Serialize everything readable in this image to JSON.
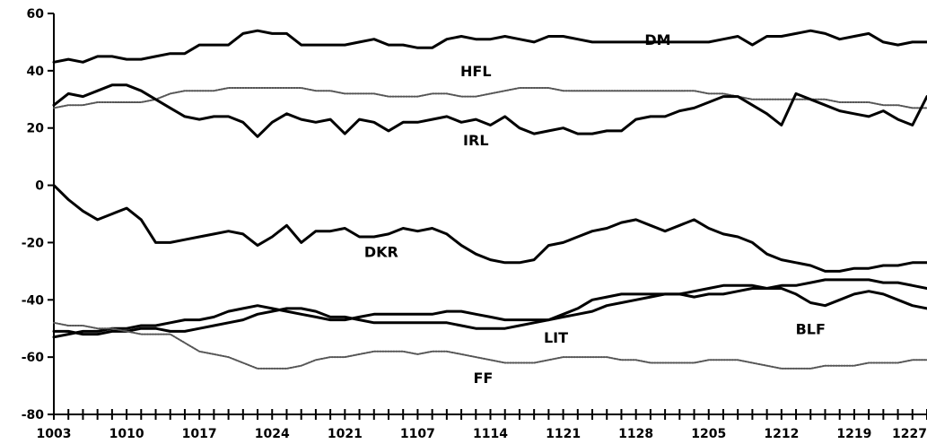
{
  "chart_data": {
    "type": "line",
    "title": "",
    "xlabel": "",
    "ylabel": "",
    "ylim": [
      -80,
      60
    ],
    "y_ticks": [
      60,
      40,
      20,
      0,
      -20,
      -40,
      -60,
      -80
    ],
    "y_tick_labels": [
      "60",
      "40",
      "20",
      "0",
      "-20",
      "-40",
      "-60",
      "-80"
    ],
    "x_range": [
      0,
      120
    ],
    "x_tick_count": 61,
    "x_labels": [
      {
        "label": "1003",
        "x": 0
      },
      {
        "label": "1010",
        "x": 10
      },
      {
        "label": "1017",
        "x": 20
      },
      {
        "label": "1024",
        "x": 30
      },
      {
        "label": "1021",
        "x": 40
      },
      {
        "label": "1107",
        "x": 50
      },
      {
        "label": "1114",
        "x": 60
      },
      {
        "label": "1121",
        "x": 70
      },
      {
        "label": "1128",
        "x": 80
      },
      {
        "label": "1205",
        "x": 90
      },
      {
        "label": "1212",
        "x": 100
      },
      {
        "label": "1219",
        "x": 110
      },
      {
        "label": "1227",
        "x": 120
      }
    ],
    "series": [
      {
        "name": "DM",
        "style": "solid",
        "color": "#000000",
        "x": [
          0,
          2,
          4,
          6,
          8,
          10,
          12,
          14,
          16,
          18,
          20,
          22,
          24,
          26,
          28,
          30,
          32,
          34,
          36,
          38,
          40,
          42,
          44,
          46,
          48,
          50,
          52,
          54,
          56,
          58,
          60,
          62,
          64,
          66,
          68,
          70,
          72,
          74,
          76,
          78,
          80,
          82,
          84,
          86,
          88,
          90,
          92,
          94,
          96,
          98,
          100,
          102,
          104,
          106,
          108,
          110,
          112,
          114,
          116,
          118,
          120
        ],
        "values": [
          43,
          44,
          43,
          45,
          45,
          44,
          44,
          45,
          46,
          46,
          49,
          49,
          49,
          53,
          54,
          53,
          53,
          49,
          49,
          49,
          49,
          50,
          51,
          49,
          49,
          48,
          48,
          51,
          52,
          51,
          51,
          52,
          51,
          50,
          52,
          52,
          51,
          50,
          50,
          50,
          50,
          50,
          50,
          50,
          50,
          50,
          51,
          52,
          49,
          52,
          52,
          53,
          54,
          53,
          51,
          52,
          53,
          50,
          49,
          50,
          50
        ]
      },
      {
        "name": "HFL",
        "style": "dotted",
        "color": "#555555",
        "x": [
          0,
          2,
          4,
          6,
          8,
          10,
          12,
          14,
          16,
          18,
          20,
          22,
          24,
          26,
          28,
          30,
          32,
          34,
          36,
          38,
          40,
          42,
          44,
          46,
          48,
          50,
          52,
          54,
          56,
          58,
          60,
          62,
          64,
          66,
          68,
          70,
          72,
          74,
          76,
          78,
          80,
          82,
          84,
          86,
          88,
          90,
          92,
          94,
          96,
          98,
          100,
          102,
          104,
          106,
          108,
          110,
          112,
          114,
          116,
          118,
          120
        ],
        "values": [
          27,
          28,
          28,
          29,
          29,
          29,
          29,
          30,
          32,
          33,
          33,
          33,
          34,
          34,
          34,
          34,
          34,
          34,
          33,
          33,
          32,
          32,
          32,
          31,
          31,
          31,
          32,
          32,
          31,
          31,
          32,
          33,
          34,
          34,
          34,
          33,
          33,
          33,
          33,
          33,
          33,
          33,
          33,
          33,
          33,
          32,
          32,
          31,
          30,
          30,
          30,
          30,
          30,
          30,
          29,
          29,
          29,
          28,
          28,
          27,
          27
        ]
      },
      {
        "name": "IRL",
        "style": "solid",
        "color": "#000000",
        "x": [
          0,
          2,
          4,
          6,
          8,
          10,
          12,
          14,
          16,
          18,
          20,
          22,
          24,
          26,
          28,
          30,
          32,
          34,
          36,
          38,
          40,
          42,
          44,
          46,
          48,
          50,
          52,
          54,
          56,
          58,
          60,
          62,
          64,
          66,
          68,
          70,
          72,
          74,
          76,
          78,
          80,
          82,
          84,
          86,
          88,
          90,
          92,
          94,
          96,
          98,
          100,
          102,
          104,
          106,
          108,
          110,
          112,
          114,
          116,
          118,
          120
        ],
        "values": [
          28,
          32,
          31,
          33,
          35,
          35,
          33,
          30,
          27,
          24,
          23,
          24,
          24,
          22,
          17,
          22,
          25,
          23,
          22,
          23,
          18,
          23,
          22,
          19,
          22,
          22,
          23,
          24,
          22,
          23,
          21,
          24,
          20,
          18,
          19,
          20,
          18,
          18,
          19,
          19,
          23,
          24,
          24,
          26,
          27,
          29,
          31,
          31,
          28,
          25,
          21,
          32,
          30,
          28,
          26,
          25,
          24,
          26,
          23,
          21,
          31
        ]
      },
      {
        "name": "DKR",
        "style": "solid",
        "color": "#000000",
        "x": [
          0,
          2,
          4,
          6,
          8,
          10,
          12,
          14,
          16,
          18,
          20,
          22,
          24,
          26,
          28,
          30,
          32,
          34,
          36,
          38,
          40,
          42,
          44,
          46,
          48,
          50,
          52,
          54,
          56,
          58,
          60,
          62,
          64,
          66,
          68,
          70,
          72,
          74,
          76,
          78,
          80,
          82,
          84,
          86,
          88,
          90,
          92,
          94,
          96,
          98,
          100,
          102,
          104,
          106,
          108,
          110,
          112,
          114,
          116,
          118,
          120
        ],
        "values": [
          0,
          -5,
          -9,
          -12,
          -10,
          -8,
          -12,
          -20,
          -20,
          -19,
          -18,
          -17,
          -16,
          -17,
          -21,
          -18,
          -14,
          -20,
          -16,
          -16,
          -15,
          -18,
          -18,
          -17,
          -15,
          -16,
          -15,
          -17,
          -21,
          -24,
          -26,
          -27,
          -27,
          -26,
          -21,
          -20,
          -18,
          -16,
          -15,
          -13,
          -12,
          -14,
          -16,
          -14,
          -12,
          -15,
          -17,
          -18,
          -20,
          -24,
          -26,
          -27,
          -28,
          -30,
          -30,
          -29,
          -29,
          -28,
          -28,
          -27,
          -27
        ]
      },
      {
        "name": "LIT",
        "style": "solid",
        "color": "#000000",
        "x": [
          0,
          2,
          4,
          6,
          8,
          10,
          12,
          14,
          16,
          18,
          20,
          22,
          24,
          26,
          28,
          30,
          32,
          34,
          36,
          38,
          40,
          42,
          44,
          46,
          48,
          50,
          52,
          54,
          56,
          58,
          60,
          62,
          64,
          66,
          68,
          70,
          72,
          74,
          76,
          78,
          80,
          82,
          84,
          86,
          88,
          90,
          92,
          94,
          96,
          98,
          100,
          102,
          104,
          106,
          108,
          110,
          112,
          114,
          116,
          118,
          120
        ],
        "values": [
          -51,
          -51,
          -52,
          -52,
          -51,
          -51,
          -50,
          -50,
          -51,
          -51,
          -50,
          -49,
          -48,
          -47,
          -45,
          -44,
          -43,
          -43,
          -44,
          -46,
          -46,
          -47,
          -48,
          -48,
          -48,
          -48,
          -48,
          -48,
          -49,
          -50,
          -50,
          -50,
          -49,
          -48,
          -47,
          -46,
          -45,
          -44,
          -42,
          -41,
          -40,
          -39,
          -38,
          -38,
          -39,
          -38,
          -38,
          -37,
          -36,
          -36,
          -35,
          -35,
          -34,
          -33,
          -33,
          -33,
          -33,
          -34,
          -34,
          -35,
          -36
        ]
      },
      {
        "name": "BLF",
        "style": "solid",
        "color": "#000000",
        "x": [
          0,
          2,
          4,
          6,
          8,
          10,
          12,
          14,
          16,
          18,
          20,
          22,
          24,
          26,
          28,
          30,
          32,
          34,
          36,
          38,
          40,
          42,
          44,
          46,
          48,
          50,
          52,
          54,
          56,
          58,
          60,
          62,
          64,
          66,
          68,
          70,
          72,
          74,
          76,
          78,
          80,
          82,
          84,
          86,
          88,
          90,
          92,
          94,
          96,
          98,
          100,
          102,
          104,
          106,
          108,
          110,
          112,
          114,
          116,
          118,
          120
        ],
        "values": [
          -53,
          -52,
          -51,
          -51,
          -50,
          -50,
          -49,
          -49,
          -48,
          -47,
          -47,
          -46,
          -44,
          -43,
          -42,
          -43,
          -44,
          -45,
          -46,
          -47,
          -47,
          -46,
          -45,
          -45,
          -45,
          -45,
          -45,
          -44,
          -44,
          -45,
          -46,
          -47,
          -47,
          -47,
          -47,
          -45,
          -43,
          -40,
          -39,
          -38,
          -38,
          -38,
          -38,
          -38,
          -37,
          -36,
          -35,
          -35,
          -35,
          -36,
          -36,
          -38,
          -41,
          -42,
          -40,
          -38,
          -37,
          -38,
          -40,
          -42,
          -43
        ]
      },
      {
        "name": "FF",
        "style": "dotted",
        "color": "#555555",
        "x": [
          0,
          2,
          4,
          6,
          8,
          10,
          12,
          14,
          16,
          18,
          20,
          22,
          24,
          26,
          28,
          30,
          32,
          34,
          36,
          38,
          40,
          42,
          44,
          46,
          48,
          50,
          52,
          54,
          56,
          58,
          60,
          62,
          64,
          66,
          68,
          70,
          72,
          74,
          76,
          78,
          80,
          82,
          84,
          86,
          88,
          90,
          92,
          94,
          96,
          98,
          100,
          102,
          104,
          106,
          108,
          110,
          112,
          114,
          116,
          118,
          120
        ],
        "values": [
          -48,
          -49,
          -49,
          -50,
          -50,
          -51,
          -52,
          -52,
          -52,
          -55,
          -58,
          -59,
          -60,
          -62,
          -64,
          -64,
          -64,
          -63,
          -61,
          -60,
          -60,
          -59,
          -58,
          -58,
          -58,
          -59,
          -58,
          -58,
          -59,
          -60,
          -61,
          -62,
          -62,
          -62,
          -61,
          -60,
          -60,
          -60,
          -60,
          -61,
          -61,
          -62,
          -62,
          -62,
          -62,
          -61,
          -61,
          -61,
          -62,
          -63,
          -64,
          -64,
          -64,
          -63,
          -63,
          -63,
          -62,
          -62,
          -62,
          -61,
          -61
        ]
      }
    ],
    "annotations": [
      {
        "text": "DM",
        "x": 83,
        "y": 49
      },
      {
        "text": "HFL",
        "x": 58,
        "y": 38
      },
      {
        "text": "IRL",
        "x": 58,
        "y": 14
      },
      {
        "text": "DKR",
        "x": 45,
        "y": -25
      },
      {
        "text": "LIT",
        "x": 69,
        "y": -55
      },
      {
        "text": "BLF",
        "x": 104,
        "y": -52
      },
      {
        "text": "FF",
        "x": 59,
        "y": -69
      }
    ],
    "grid": false,
    "legend": "none"
  }
}
